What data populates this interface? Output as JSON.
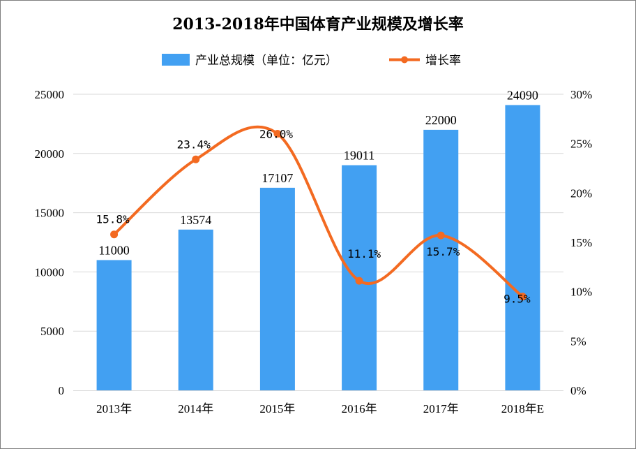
{
  "chart_data": {
    "type": "bar",
    "title": "2013-2018年中国体育产业规模及增长率",
    "categories": [
      "2013年",
      "2014年",
      "2015年",
      "2016年",
      "2017年",
      "2018年E"
    ],
    "series": [
      {
        "name": "产业总规模（单位：亿元）",
        "type": "bar",
        "axis": "left",
        "values": [
          11000,
          13574,
          17107,
          19011,
          22000,
          24090
        ],
        "labels": [
          "11000",
          "13574",
          "17107",
          "19011",
          "22000",
          "24090"
        ]
      },
      {
        "name": "增长率",
        "type": "line",
        "axis": "right",
        "smooth": true,
        "values": [
          15.8,
          23.4,
          26.0,
          11.1,
          15.7,
          9.5
        ],
        "labels": [
          "15.8%",
          "23.4%",
          "26.0%",
          "11.1%",
          "15.7%",
          "9.5%"
        ]
      }
    ],
    "y_left": {
      "min": 0,
      "max": 25000,
      "ticks": [
        "0",
        "5000",
        "10000",
        "15000",
        "20000",
        "25000"
      ]
    },
    "y_right": {
      "min": 0,
      "max": 30,
      "ticks": [
        "0%",
        "5%",
        "10%",
        "15%",
        "20%",
        "25%",
        "30%"
      ]
    },
    "grid": true,
    "legend_position": "top"
  },
  "colors": {
    "bar": "#42a0f2",
    "line": "#f36a21",
    "grid": "#d9d9d9"
  }
}
